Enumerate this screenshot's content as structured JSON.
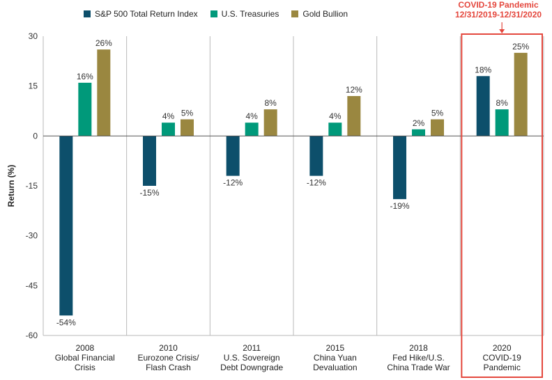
{
  "chart_data": {
    "type": "bar",
    "ylabel": "Return (%)",
    "ylim": [
      -60,
      30
    ],
    "yticks": [
      30,
      15,
      0,
      -15,
      -30,
      -45,
      -60
    ],
    "grid": "vertical separators only",
    "legend_position": "top-left",
    "categories": [
      {
        "year": "2008",
        "line2": "Global Financial",
        "line3": "Crisis"
      },
      {
        "year": "2010",
        "line2": "Eurozone Crisis/",
        "line3": "Flash Crash"
      },
      {
        "year": "2011",
        "line2": "U.S. Sovereign",
        "line3": "Debt Downgrade"
      },
      {
        "year": "2015",
        "line2": "China Yuan",
        "line3": "Devaluation"
      },
      {
        "year": "2018",
        "line2": "Fed Hike/U.S.",
        "line3": "China Trade War"
      },
      {
        "year": "2020",
        "line2": "COVID-19",
        "line3": "Pandemic"
      }
    ],
    "series": [
      {
        "name": "S&P 500 Total Return Index",
        "color": "#0d4f6b",
        "values": [
          -54,
          -15,
          -12,
          -12,
          -19,
          18
        ]
      },
      {
        "name": "U.S. Treasuries",
        "color": "#00997a",
        "values": [
          16,
          4,
          4,
          4,
          2,
          8
        ]
      },
      {
        "name": "Gold Bullion",
        "color": "#9a8740",
        "values": [
          26,
          5,
          8,
          12,
          5,
          25
        ]
      }
    ],
    "highlight": {
      "category_index": 5,
      "color": "#e4473d",
      "line1": "COVID-19 Pandemic",
      "line2": "12/31/2019-12/31/2020"
    }
  }
}
